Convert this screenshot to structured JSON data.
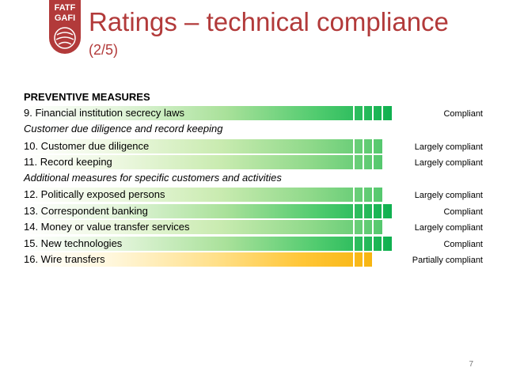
{
  "logo": {
    "line1": "FATF",
    "line2": "GAFI",
    "color": "#b23a3a"
  },
  "header": {
    "title": "Ratings – technical compliance",
    "subtitle": "(2/5)"
  },
  "section": {
    "heading": "PREVENTIVE MEASURES"
  },
  "rows": [
    {
      "label": "9. Financial institution secrecy laws",
      "rating": "Compliant"
    },
    {
      "subheading": "Customer due diligence and record keeping"
    },
    {
      "label": "10. Customer due diligence",
      "rating": "Largely compliant"
    },
    {
      "label": "11. Record keeping",
      "rating": "Largely compliant"
    },
    {
      "subheading": "Additional measures for specific customers and activities"
    },
    {
      "label": "12. Politically exposed persons",
      "rating": "Largely compliant"
    },
    {
      "label": "13. Correspondent banking",
      "rating": "Compliant"
    },
    {
      "label": "14. Money or value transfer services",
      "rating": "Largely compliant"
    },
    {
      "label": "15. New technologies",
      "rating": "Compliant"
    },
    {
      "label": "16. Wire transfers",
      "rating": "Partially compliant"
    }
  ],
  "colors": {
    "compliant": "#0fb04f",
    "largely_compliant": "#55c86e",
    "partially_compliant": "#f7b511",
    "title": "#b23a3a"
  },
  "footer": {
    "page_number": "7"
  }
}
